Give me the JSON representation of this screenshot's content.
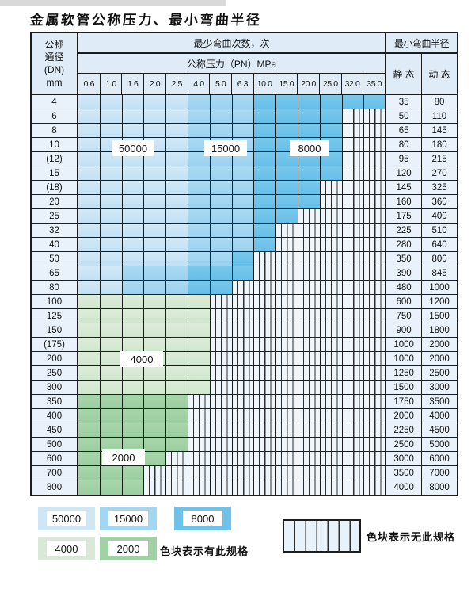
{
  "title": "金属软管公称压力、最小弯曲半径",
  "table": {
    "header": {
      "dn_lines": [
        "公称",
        "通径",
        "(DN)",
        "mm"
      ],
      "bend_cycles_label": "最少弯曲次数，次",
      "pressure_label": "公称压力（PN）MPa",
      "pressure_ticks": [
        "0.6",
        "1.0",
        "1.6",
        "2.0",
        "2.5",
        "4.0",
        "5.0",
        "6.3",
        "10.0",
        "15.0",
        "20.0",
        "25.0",
        "32.0",
        "35.0"
      ],
      "bend_radius_label": "最小弯曲半径",
      "static_label": "静 态",
      "dynamic_label": "动 态"
    },
    "cell_code_legend": {
      "L": "50000次",
      "M": "15000次",
      "D": "8000次",
      "G": "4000次",
      "H": "2000次",
      "X": "无此规格"
    },
    "rows": [
      {
        "dn": "4",
        "cells": "LLLLLMMMDDDDDD",
        "static": "35",
        "dynamic": "80"
      },
      {
        "dn": "6",
        "cells": "LLLLLMMMDDDDXX",
        "static": "50",
        "dynamic": "110"
      },
      {
        "dn": "8",
        "cells": "LLLLLMMMDDDDXX",
        "static": "65",
        "dynamic": "145"
      },
      {
        "dn": "10",
        "cells": "LLLLLMMMDDDDXX",
        "static": "80",
        "dynamic": "180"
      },
      {
        "dn": "(12)",
        "cells": "LLLLLMMMDDDDXX",
        "static": "95",
        "dynamic": "215"
      },
      {
        "dn": "15",
        "cells": "LLLLLMMMDDDDXX",
        "static": "120",
        "dynamic": "270"
      },
      {
        "dn": "(18)",
        "cells": "LLLLLMMMDDDXXX",
        "static": "145",
        "dynamic": "325"
      },
      {
        "dn": "20",
        "cells": "LLLLLMMMDDDXXX",
        "static": "160",
        "dynamic": "360"
      },
      {
        "dn": "25",
        "cells": "LLLLLMMMDDXXXX",
        "static": "175",
        "dynamic": "400"
      },
      {
        "dn": "32",
        "cells": "LLLLLMMMDXXXXX",
        "static": "225",
        "dynamic": "510"
      },
      {
        "dn": "40",
        "cells": "LLLLLMMMDXXXXX",
        "static": "280",
        "dynamic": "640"
      },
      {
        "dn": "50",
        "cells": "LLLLLMMDXXXXXX",
        "static": "350",
        "dynamic": "800"
      },
      {
        "dn": "65",
        "cells": "LLMMMDDDXXXXXX",
        "static": "390",
        "dynamic": "845"
      },
      {
        "dn": "80",
        "cells": "LLMMMDDXXXXXXX",
        "static": "480",
        "dynamic": "1000"
      },
      {
        "dn": "100",
        "cells": "GGGGGGXXXXXXXX",
        "static": "600",
        "dynamic": "1200"
      },
      {
        "dn": "125",
        "cells": "GGGGGGXXXXXXXX",
        "static": "750",
        "dynamic": "1500"
      },
      {
        "dn": "150",
        "cells": "GGGGGGXXXXXXXX",
        "static": "900",
        "dynamic": "1800"
      },
      {
        "dn": "(175)",
        "cells": "GGGGGGXXXXXXXX",
        "static": "1000",
        "dynamic": "2000"
      },
      {
        "dn": "200",
        "cells": "GGGGGGXXXXXXXX",
        "static": "1000",
        "dynamic": "2000"
      },
      {
        "dn": "250",
        "cells": "GGGGGGXXXXXXXX",
        "static": "1250",
        "dynamic": "2500"
      },
      {
        "dn": "300",
        "cells": "GGGGGGXXXXXXXX",
        "static": "1500",
        "dynamic": "3000"
      },
      {
        "dn": "350",
        "cells": "HHHHHXXXXXXXXX",
        "static": "1750",
        "dynamic": "3500"
      },
      {
        "dn": "400",
        "cells": "HHHHHXXXXXXXXX",
        "static": "2000",
        "dynamic": "4000"
      },
      {
        "dn": "450",
        "cells": "HHHHHXXXXXXXXX",
        "static": "2250",
        "dynamic": "4500"
      },
      {
        "dn": "500",
        "cells": "HHHHHXXXXXXXXX",
        "static": "2500",
        "dynamic": "5000"
      },
      {
        "dn": "600",
        "cells": "HHHHXXXXXXXXXX",
        "static": "3000",
        "dynamic": "6000"
      },
      {
        "dn": "700",
        "cells": "HHHXXXXXXXXXXX",
        "static": "3500",
        "dynamic": "7000"
      },
      {
        "dn": "800",
        "cells": "HHHXXXXXXXXXXX",
        "static": "4000",
        "dynamic": "8000"
      }
    ],
    "region_labels": [
      {
        "text": "50000"
      },
      {
        "text": "15000"
      },
      {
        "text": "8000"
      },
      {
        "text": "4000"
      },
      {
        "text": "2000"
      }
    ]
  },
  "legend": {
    "swatches": [
      {
        "label": "50000",
        "color": "#cde7f7"
      },
      {
        "label": "15000",
        "color": "#a3d6f1"
      },
      {
        "label": "8000",
        "color": "#6ec2ea"
      },
      {
        "label": "4000",
        "color": "#d8ead6"
      },
      {
        "label": "2000",
        "color": "#a1d2a5"
      }
    ],
    "has_spec_text": "色块表示有此规格",
    "no_spec_text": "色块表示无此规格"
  },
  "colors": {
    "cycles_50000": "#cde7f7",
    "cycles_15000": "#a3d6f1",
    "cycles_8000": "#6ec2ea",
    "cycles_4000": "#d8ead6",
    "cycles_2000": "#a1d2a5",
    "no_spec_bg": "#eef5fb",
    "header_bg": "#dfecf7",
    "label_col_bg": "#e9f2fa",
    "border": "#1c1c1c"
  }
}
